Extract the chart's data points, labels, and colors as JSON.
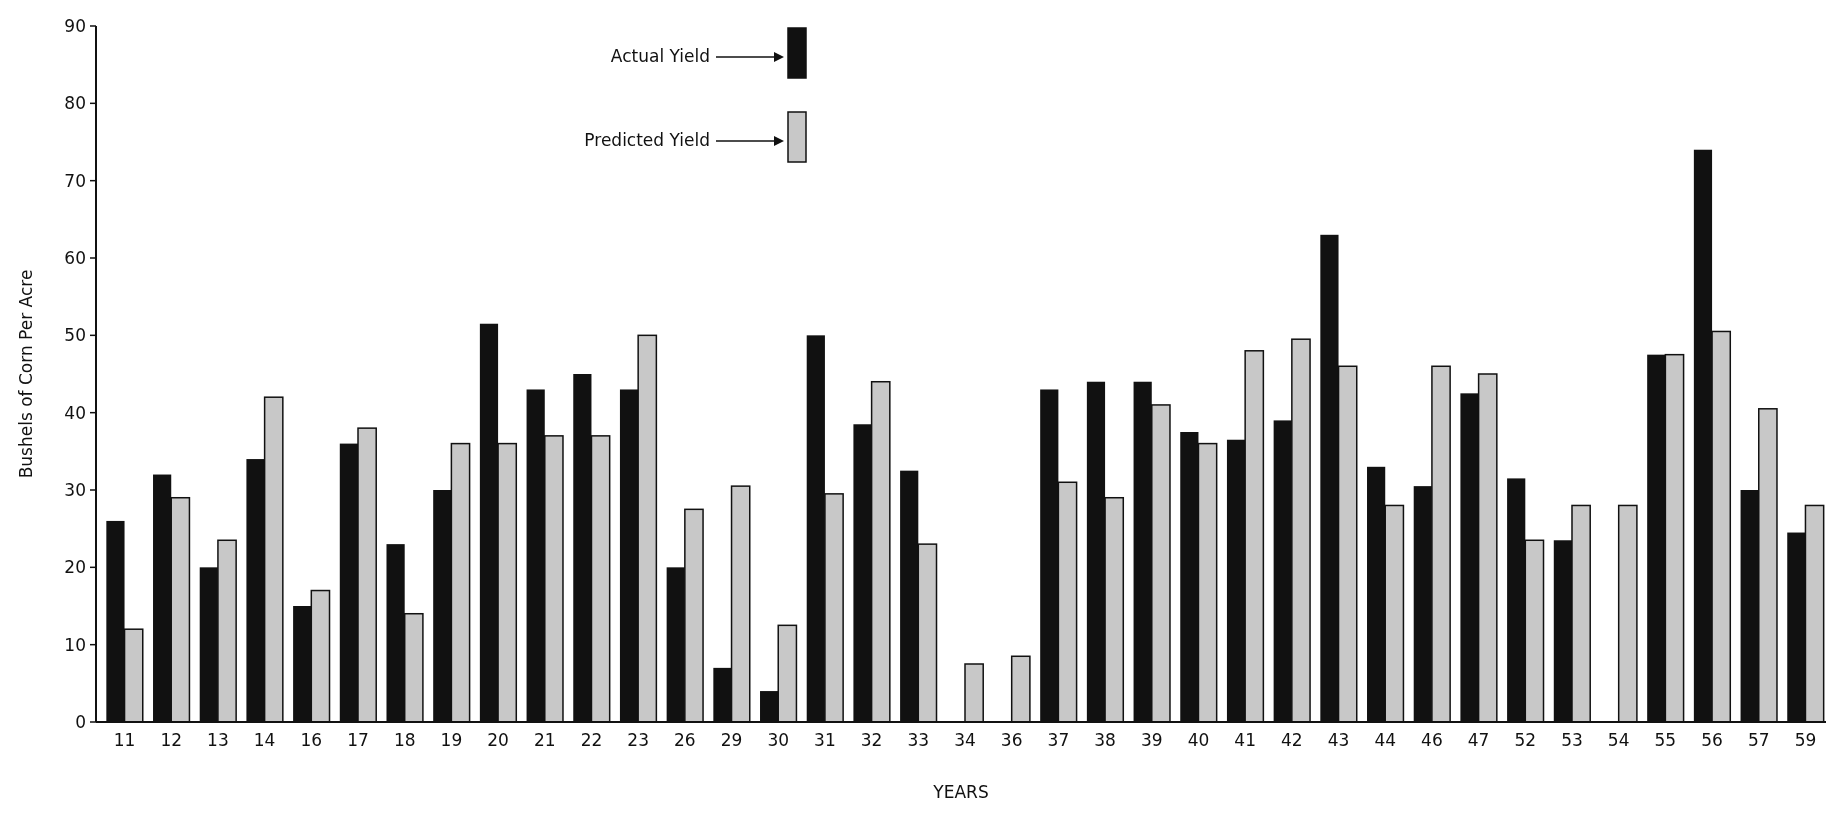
{
  "chart_data": {
    "type": "bar",
    "xlabel": "YEARS",
    "ylabel": "Bushels of Corn Per Acre",
    "categories": [
      "11",
      "12",
      "13",
      "14",
      "16",
      "17",
      "18",
      "19",
      "20",
      "21",
      "22",
      "23",
      "26",
      "29",
      "30",
      "31",
      "32",
      "33",
      "34",
      "36",
      "37",
      "38",
      "39",
      "40",
      "41",
      "42",
      "43",
      "44",
      "46",
      "47",
      "52",
      "53",
      "54",
      "55",
      "56",
      "57",
      "59"
    ],
    "series": [
      {
        "name": "Actual Yield",
        "color": "#111111",
        "values": [
          26,
          32,
          20,
          34,
          15,
          36,
          23,
          30,
          51.5,
          43,
          45,
          43,
          20,
          7,
          4,
          50,
          38.5,
          32.5,
          null,
          null,
          43,
          44,
          44,
          37.5,
          36.5,
          39,
          63,
          33,
          30.5,
          42.5,
          31.5,
          23.5,
          null,
          47.5,
          74,
          30,
          24.5
        ]
      },
      {
        "name": "Predicted Yield",
        "color": "#c8c8c8",
        "values": [
          12,
          29,
          23.5,
          42,
          17,
          38,
          14,
          36,
          36,
          37,
          37,
          50,
          27.5,
          30.5,
          12.5,
          29.5,
          44,
          23,
          7.5,
          8.5,
          31,
          29,
          41,
          36,
          48,
          49.5,
          46,
          28,
          46,
          45,
          23.5,
          28,
          28,
          47.5,
          50.5,
          40.5,
          28
        ]
      }
    ],
    "ylim": [
      0,
      90
    ],
    "yticks": [
      0,
      10,
      20,
      30,
      40,
      50,
      60,
      70,
      80,
      90
    ],
    "grid": false,
    "legend": "top"
  }
}
